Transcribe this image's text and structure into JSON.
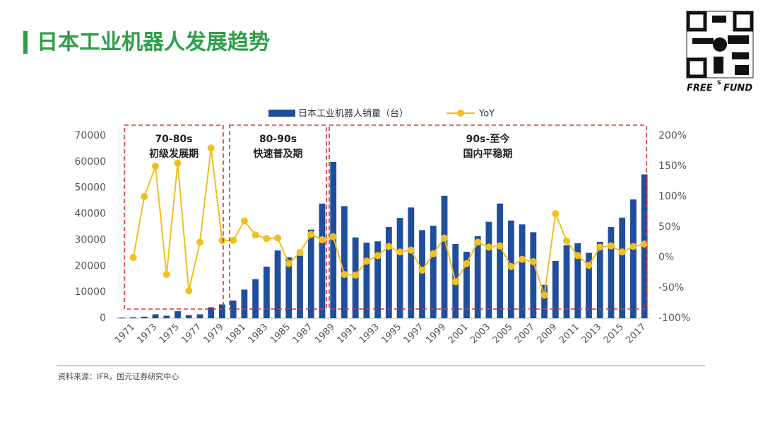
{
  "title": "日本工业机器人发展趋势",
  "logo": [
    "FREE",
    "S",
    "FUND"
  ],
  "source": "资料来源：IFR，国元证券研究中心",
  "chart_data": {
    "type": "bar-line",
    "categories": [
      "1971",
      null,
      "1973",
      null,
      "1975",
      null,
      "1977",
      null,
      "1979",
      null,
      "1981",
      null,
      "1983",
      null,
      "1985",
      null,
      "1987",
      null,
      "1989",
      null,
      "1991",
      null,
      "1993",
      null,
      "1995",
      null,
      "1997",
      null,
      "1999",
      null,
      "2001",
      null,
      "2003",
      null,
      "2005",
      null,
      "2007",
      null,
      "2009",
      null,
      "2011",
      null,
      "2013",
      null,
      "2015",
      null,
      "2017",
      null
    ],
    "series": [
      {
        "name": "日本工业机器人销量（台）",
        "type": "bar",
        "color": "#1f4e9c",
        "values": [
          300,
          400,
          600,
          1500,
          1000,
          2700,
          1200,
          1500,
          4200,
          5300,
          6800,
          11000,
          15000,
          19800,
          26000,
          23400,
          24000,
          34000,
          44000,
          60000,
          43000,
          31000,
          29000,
          29500,
          35000,
          38500,
          42500,
          33800,
          35500,
          47000,
          28500,
          25500,
          31500,
          37000,
          44000,
          37500,
          36000,
          33000,
          12800,
          22000,
          28000,
          28800,
          25100,
          29300,
          35000,
          38600,
          45600,
          55200
        ]
      },
      {
        "name": "YoY",
        "type": "line",
        "axis": "y2",
        "color": "#f0c020",
        "values": [
          null,
          0,
          100,
          150,
          -28,
          155,
          -55,
          25,
          180,
          28,
          28,
          60,
          37,
          31,
          32,
          -10,
          8,
          38,
          29,
          34,
          -28,
          -29,
          -6,
          3,
          18,
          9,
          12,
          -21,
          6,
          32,
          -40,
          -10,
          25,
          17,
          19,
          -15,
          -3,
          -7,
          -62,
          72,
          27,
          3,
          -13,
          17,
          19,
          9,
          18,
          22
        ]
      }
    ],
    "ylim": [
      0,
      70000
    ],
    "yticks": [
      0,
      10000,
      20000,
      30000,
      40000,
      50000,
      60000,
      70000
    ],
    "y2lim": [
      -100,
      200
    ],
    "y2ticks": [
      {
        "value": -100,
        "label": "-100%"
      },
      {
        "value": -50,
        "label": "-50%"
      },
      {
        "value": 0,
        "label": "0%"
      },
      {
        "value": 50,
        "label": "50%"
      },
      {
        "value": 100,
        "label": "100%"
      },
      {
        "value": 150,
        "label": "150%"
      },
      {
        "value": 200,
        "label": "200%"
      }
    ],
    "annotations": [
      [
        "70-80s",
        "初级发展期"
      ],
      [
        "80-90s",
        "快速普及期"
      ],
      [
        "90s-至今",
        "国内平稳期"
      ]
    ]
  }
}
